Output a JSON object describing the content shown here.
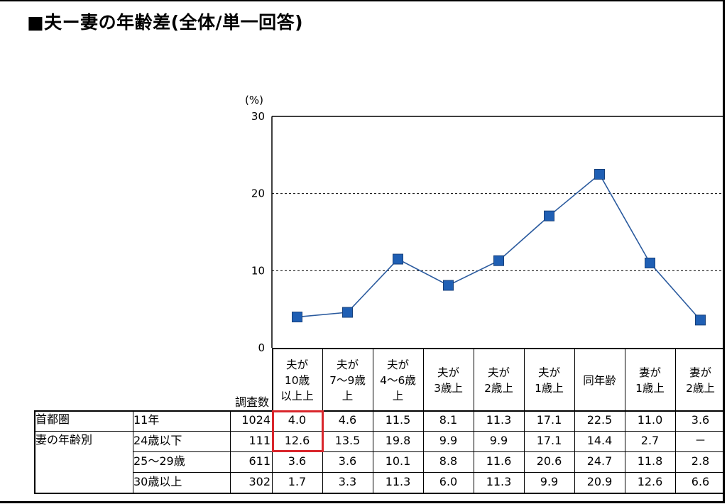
{
  "title": "■夫ー妻の年齢差(全体/単一回答)",
  "chart_data": {
    "type": "line",
    "unit_label": "(%)",
    "ylim": [
      0,
      30
    ],
    "yticks": [
      "30",
      "20",
      "10",
      "0"
    ],
    "grid": "dashed horizontal at 10 and 20",
    "categories": [
      [
        "夫が",
        "10歳",
        "以上上"
      ],
      [
        "夫が",
        "7～9歳",
        "上"
      ],
      [
        "夫が",
        "4～6歳",
        "上"
      ],
      [
        "夫が",
        "3歳上"
      ],
      [
        "夫が",
        "2歳上"
      ],
      [
        "夫が",
        "1歳上"
      ],
      [
        "同年齢"
      ],
      [
        "妻が",
        "1歳上"
      ],
      [
        "妻が",
        "2歳上"
      ]
    ],
    "series": [
      {
        "values": [
          4.0,
          4.6,
          11.5,
          8.1,
          11.3,
          17.1,
          22.5,
          11.0,
          3.6
        ]
      }
    ],
    "line_color": "#2a5a9e",
    "marker_color": "#1f5fb4"
  },
  "table": {
    "count_header": "調査数",
    "rows": [
      {
        "group": "首都圏",
        "label": "11年",
        "count": "1024",
        "values": [
          "4.0",
          "4.6",
          "11.5",
          "8.1",
          "11.3",
          "17.1",
          "22.5",
          "11.0",
          "3.6"
        ]
      },
      {
        "group": "妻の年齢別",
        "label": "24歳以下",
        "count": "111",
        "values": [
          "12.6",
          "13.5",
          "19.8",
          "9.9",
          "9.9",
          "17.1",
          "14.4",
          "2.7",
          "－"
        ]
      },
      {
        "group": "",
        "label": "25～29歳",
        "count": "611",
        "values": [
          "3.6",
          "3.6",
          "10.1",
          "8.8",
          "11.6",
          "20.6",
          "24.7",
          "11.8",
          "2.8"
        ]
      },
      {
        "group": "",
        "label": "30歳以上",
        "count": "302",
        "values": [
          "1.7",
          "3.3",
          "11.3",
          "6.0",
          "11.3",
          "9.9",
          "20.9",
          "12.6",
          "6.6"
        ]
      }
    ],
    "highlight_color": "#d9262c"
  }
}
